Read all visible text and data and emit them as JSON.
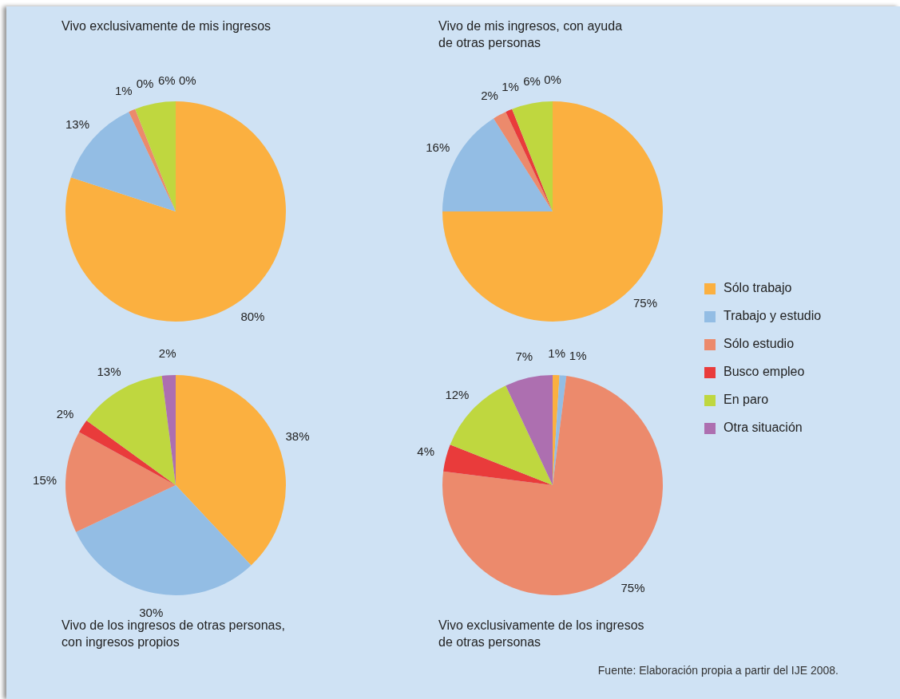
{
  "chart_data": [
    {
      "type": "pie",
      "title": "Vivo exclusivamente de mis ingresos",
      "categories": [
        "Sólo trabajo",
        "Trabajo y estudio",
        "Sólo estudio",
        "Busco empleo",
        "En paro",
        "Otra situación"
      ],
      "values": [
        80,
        13,
        1,
        0,
        6,
        0
      ],
      "value_labels": [
        "80%",
        "13%",
        "1%",
        "0%",
        "6%",
        "0%"
      ],
      "colors": [
        "#fbb040",
        "#93bde4",
        "#ec8a6c",
        "#e93b3b",
        "#bfd73f",
        "#ad6fb0"
      ],
      "legend": "right"
    },
    {
      "type": "pie",
      "title": "Vivo de mis ingresos, con ayuda\nde otras personas",
      "categories": [
        null,
        null,
        null,
        null,
        null,
        null
      ],
      "values": [
        75,
        16,
        2,
        1,
        6,
        0
      ],
      "value_labels": [
        "75%",
        "16%",
        "2%",
        "1%",
        "6%",
        "0%"
      ],
      "colors": [
        "#fbb040",
        "#93bde4",
        "#ec8a6c",
        "#e93b3b",
        "#bfd73f",
        "#ad6fb0"
      ]
    },
    {
      "type": "pie",
      "title": "Vivo de los ingresos de otras personas,\ncon ingresos propios",
      "categories": [
        null,
        null,
        null,
        null,
        null,
        null
      ],
      "values": [
        38,
        30,
        15,
        2,
        13,
        2
      ],
      "value_labels": [
        "38%",
        "30%",
        "15%",
        "2%",
        "13%",
        "2%"
      ],
      "colors": [
        "#fbb040",
        "#93bde4",
        "#ec8a6c",
        "#e93b3b",
        "#bfd73f",
        "#ad6fb0"
      ]
    },
    {
      "type": "pie",
      "title": "Vivo exclusivamente de los ingresos\nde otras personas",
      "categories": [
        null,
        null,
        null,
        null,
        null,
        null
      ],
      "values": [
        1,
        1,
        75,
        4,
        12,
        7
      ],
      "value_labels": [
        "1%",
        "1%",
        "75%",
        "4%",
        "12%",
        "7%"
      ],
      "colors": [
        "#fbb040",
        "#93bde4",
        "#ec8a6c",
        "#e93b3b",
        "#bfd73f",
        "#ad6fb0"
      ],
      "annotations": [
        "Fuente: Elaboración propia a partir del IJE 2008."
      ]
    }
  ]
}
